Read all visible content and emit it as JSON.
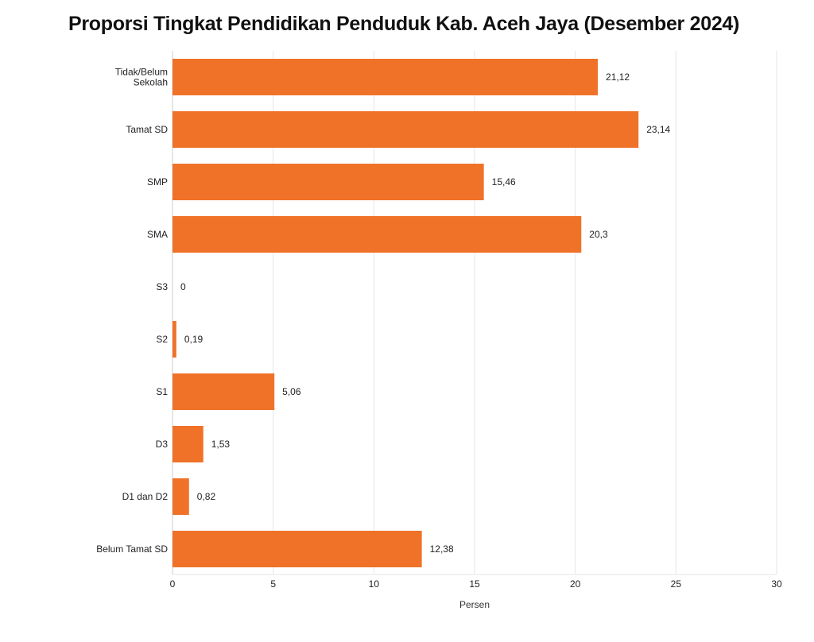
{
  "chart_data": {
    "type": "bar",
    "orientation": "horizontal",
    "title": "Proporsi Tingkat Pendidikan Penduduk Kab. Aceh Jaya (Desember 2024)",
    "categories": [
      "Tidak/Belum Sekolah",
      "Tamat SD",
      "SMP",
      "SMA",
      "S3",
      "S2",
      "S1",
      "D3",
      "D1 dan D2",
      "Belum Tamat SD"
    ],
    "category_lines": [
      [
        "Tidak/Belum",
        "Sekolah"
      ],
      [
        "Tamat SD"
      ],
      [
        "SMP"
      ],
      [
        "SMA"
      ],
      [
        "S3"
      ],
      [
        "S2"
      ],
      [
        "S1"
      ],
      [
        "D3"
      ],
      [
        "D1 dan D2"
      ],
      [
        "Belum Tamat SD"
      ]
    ],
    "values": [
      21.12,
      23.14,
      15.46,
      20.3,
      0,
      0.19,
      5.06,
      1.53,
      0.82,
      12.38
    ],
    "value_labels": [
      "21,12",
      "23,14",
      "15,46",
      "20,3",
      "0",
      "0,19",
      "5,06",
      "1,53",
      "0,82",
      "12,38"
    ],
    "xlabel": "Persen",
    "ylabel": "",
    "xlim": [
      0,
      30
    ],
    "xticks": [
      0,
      5,
      10,
      15,
      20,
      25,
      30
    ],
    "xtick_labels": [
      "0",
      "5",
      "10",
      "15",
      "20",
      "25",
      "30"
    ],
    "grid": true,
    "legend": "none",
    "colors": {
      "bar": "#F07228",
      "grid": "#E6E6E6",
      "axis": "#CCCCCC"
    }
  }
}
